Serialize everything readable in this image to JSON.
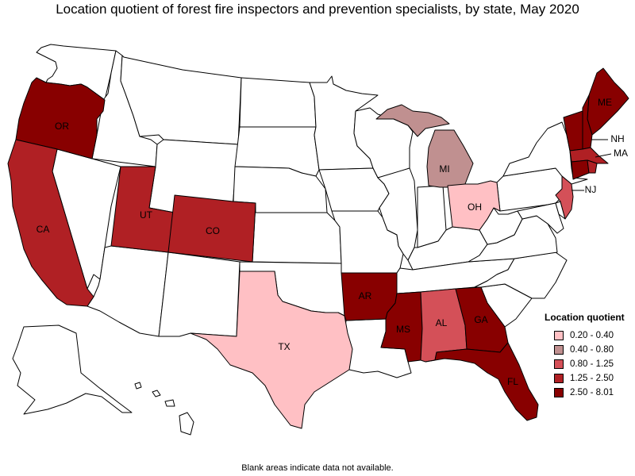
{
  "title": "Location quotient of forest fire inspectors and prevention specialists, by state, May 2020",
  "footnote": "Blank areas indicate data not available.",
  "legend": {
    "title": "Location quotient",
    "items": [
      {
        "label": "0.20 - 0.40",
        "color": "#ffc0c4"
      },
      {
        "label": "0.40 - 0.80",
        "color": "#c09090"
      },
      {
        "label": "0.80 - 1.25",
        "color": "#d45058"
      },
      {
        "label": "1.25 - 2.50",
        "color": "#b02024"
      },
      {
        "label": "2.50 - 8.01",
        "color": "#880000"
      }
    ]
  },
  "states": [
    {
      "code": "OR",
      "label": "OR",
      "bin": 4
    },
    {
      "code": "CA",
      "label": "CA",
      "bin": 3
    },
    {
      "code": "UT",
      "label": "UT",
      "bin": 3
    },
    {
      "code": "CO",
      "label": "CO",
      "bin": 3
    },
    {
      "code": "TX",
      "label": "TX",
      "bin": 0
    },
    {
      "code": "AR",
      "label": "AR",
      "bin": 4
    },
    {
      "code": "MS",
      "label": "MS",
      "bin": 4
    },
    {
      "code": "AL",
      "label": "AL",
      "bin": 2
    },
    {
      "code": "GA",
      "label": "GA",
      "bin": 4
    },
    {
      "code": "FL",
      "label": "FL",
      "bin": 4
    },
    {
      "code": "MI",
      "label": "MI",
      "bin": 1
    },
    {
      "code": "OH",
      "label": "OH",
      "bin": 0
    },
    {
      "code": "NJ",
      "label": "NJ",
      "bin": 2
    },
    {
      "code": "ME",
      "label": "ME",
      "bin": 4
    },
    {
      "code": "NH",
      "label": "NH",
      "bin": 4
    },
    {
      "code": "MA",
      "label": "MA",
      "bin": 3
    },
    {
      "code": "VT",
      "bin": 4
    },
    {
      "code": "CT",
      "bin": 4
    },
    {
      "code": "RI",
      "bin": 3
    }
  ],
  "blank_states": [
    "WA",
    "ID",
    "MT",
    "WY",
    "NV",
    "AZ",
    "NM",
    "ND",
    "SD",
    "NE",
    "KS",
    "OK",
    "MN",
    "IA",
    "MO",
    "WI",
    "IL",
    "IN",
    "KY",
    "TN",
    "LA",
    "SC",
    "NC",
    "VA",
    "WV",
    "PA",
    "NY",
    "MD",
    "DE",
    "AK",
    "HI"
  ]
}
